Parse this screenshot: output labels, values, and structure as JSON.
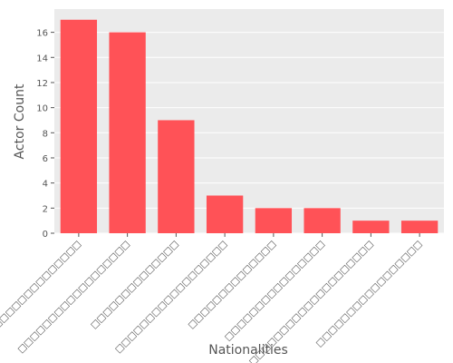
{
  "chart_data": {
    "type": "bar",
    "xlabel": "Nationalities",
    "ylabel": "Actor Count",
    "categories": [
      "□□□□□□□□□□□□□□□",
      "□□□□□□□□□□□□□□□□□□",
      "□□□□□□□□□□□□□□",
      "□□□□□□□□□□□□□□□□□□",
      "□□□□□□□□□□□□□□",
      "□□□□□□□□□□□□□□□□",
      "□□□□□□□□□□□□□□□□□□□□",
      "□□□□□□□□□□□□□□□□□"
    ],
    "values": [
      17,
      16,
      9,
      3,
      2,
      2,
      1,
      1
    ],
    "ylim": [
      0,
      17.85
    ],
    "yticks": [
      0,
      2,
      4,
      6,
      8,
      10,
      12,
      14,
      16
    ],
    "grid": true,
    "bar_color": "#ff5257",
    "background_color": "#ebebeb",
    "grid_color": "#ffffff"
  }
}
